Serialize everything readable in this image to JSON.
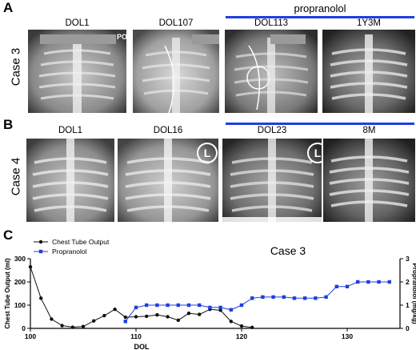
{
  "panels": {
    "A": {
      "letter": "A",
      "case_label": "Case 3",
      "drug_label": "propranolol",
      "images": [
        {
          "label": "DOL1",
          "tag": "PO"
        },
        {
          "label": "DOL107"
        },
        {
          "label": "DOL113"
        },
        {
          "label": "1Y3M"
        }
      ]
    },
    "B": {
      "letter": "B",
      "case_label": "Case 4",
      "images": [
        {
          "label": "DOL1"
        },
        {
          "label": "DOL16",
          "marker": "L"
        },
        {
          "label": "DOL23",
          "marker": "L"
        },
        {
          "label": "8M"
        }
      ]
    },
    "C": {
      "letter": "C",
      "title": "Case 3"
    }
  },
  "colors": {
    "blue_series": "#1f3fe0",
    "black_series": "#111111"
  },
  "chart_data": {
    "type": "line",
    "title": "Case 3",
    "xlabel": "DOL",
    "ylabel": "Chest Tube Output (ml)",
    "y2label": "Propranolol (mg/kg)",
    "xlim": [
      100,
      135
    ],
    "ylim": [
      0,
      300
    ],
    "y2lim": [
      0,
      3
    ],
    "xticks": [
      100,
      110,
      120,
      130
    ],
    "yticks": [
      0,
      100,
      200,
      300
    ],
    "y2ticks": [
      0,
      1,
      2,
      3
    ],
    "legend_position": "top-left",
    "series": [
      {
        "name": "Chest Tube Output",
        "axis": "left",
        "marker": "circle",
        "x": [
          100,
          101,
          102,
          103,
          104,
          105,
          106,
          107,
          108,
          109,
          110,
          111,
          112,
          113,
          114,
          115,
          116,
          117,
          118,
          119,
          120,
          121
        ],
        "y": [
          265,
          130,
          40,
          12,
          5,
          8,
          32,
          55,
          82,
          48,
          50,
          52,
          58,
          50,
          35,
          65,
          60,
          82,
          78,
          30,
          10,
          4
        ]
      },
      {
        "name": "Propranolol",
        "axis": "right",
        "marker": "square",
        "x": [
          109,
          110,
          111,
          112,
          113,
          114,
          115,
          116,
          117,
          118,
          119,
          120,
          121,
          122,
          123,
          124,
          125,
          126,
          127,
          128,
          129,
          130,
          131,
          132,
          133,
          134
        ],
        "y": [
          0.3,
          0.9,
          1.0,
          1.0,
          1.0,
          1.0,
          1.0,
          1.0,
          0.9,
          0.9,
          0.8,
          1.0,
          1.3,
          1.35,
          1.35,
          1.35,
          1.3,
          1.3,
          1.3,
          1.35,
          1.8,
          1.8,
          2.0,
          2.0,
          2.0,
          2.0
        ]
      }
    ]
  }
}
